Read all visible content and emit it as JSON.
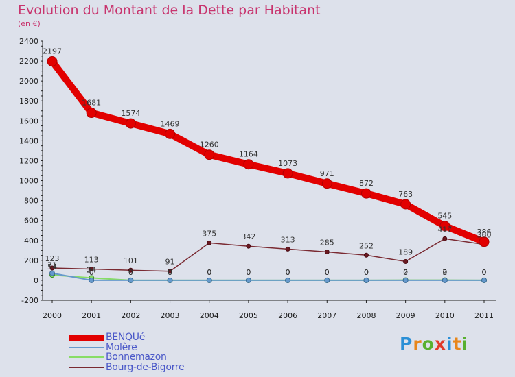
{
  "title": "Evolution du Montant de la Dette par Habitant",
  "subtitle": "(en €)",
  "brand": {
    "text": "Proxiti",
    "letter_colors": [
      "#2a8fd6",
      "#e8861a",
      "#58b030",
      "#e23a2a",
      "#2a8fd6",
      "#e8861a",
      "#58b030"
    ]
  },
  "chart_data": {
    "type": "line",
    "title": "Evolution du Montant de la Dette par Habitant",
    "subtitle": "(en €)",
    "categories": [
      "2000",
      "2001",
      "2002",
      "2003",
      "2004",
      "2005",
      "2006",
      "2007",
      "2008",
      "2009",
      "2010",
      "2011"
    ],
    "ylim": [
      -200,
      2400
    ],
    "yticks": [
      -200,
      0,
      200,
      400,
      600,
      800,
      1000,
      1200,
      1400,
      1600,
      1800,
      2000,
      2200,
      2400
    ],
    "grid": false,
    "legend_position": "bottom-left",
    "series": [
      {
        "name": "BENQUé",
        "color": "#e20000",
        "values": [
          2197,
          1681,
          1574,
          1469,
          1260,
          1164,
          1073,
          971,
          872,
          763,
          545,
          386
        ],
        "labels": [
          "2197",
          "1681",
          "1574",
          "1469",
          "1260",
          "1164",
          "1073",
          "971",
          "872",
          "763",
          "545",
          "386"
        ]
      },
      {
        "name": "Molère",
        "color": "#6699cc",
        "values": [
          71,
          0,
          0,
          0,
          0,
          0,
          0,
          0,
          0,
          0,
          0,
          0
        ],
        "labels": [
          "71",
          "0",
          "0",
          "0",
          "0",
          "0",
          "0",
          "0",
          "0",
          "0",
          "0",
          "0"
        ]
      },
      {
        "name": "Bonnemazon",
        "color": "#88dd66",
        "values": [
          54,
          24,
          0,
          0,
          0,
          0,
          0,
          0,
          0,
          2,
          2,
          0
        ],
        "labels": [
          "54",
          "24",
          "0",
          "0",
          "0",
          "0",
          "0",
          "0",
          "0",
          "2",
          "2",
          "0"
        ]
      },
      {
        "name": "Bourg-de-Bigorre",
        "color": "#7a2a32",
        "values": [
          123,
          113,
          101,
          91,
          375,
          342,
          313,
          285,
          252,
          189,
          417,
          360
        ],
        "labels": [
          "123",
          "113",
          "101",
          "91",
          "375",
          "342",
          "313",
          "285",
          "252",
          "189",
          "417",
          "360"
        ]
      }
    ]
  }
}
